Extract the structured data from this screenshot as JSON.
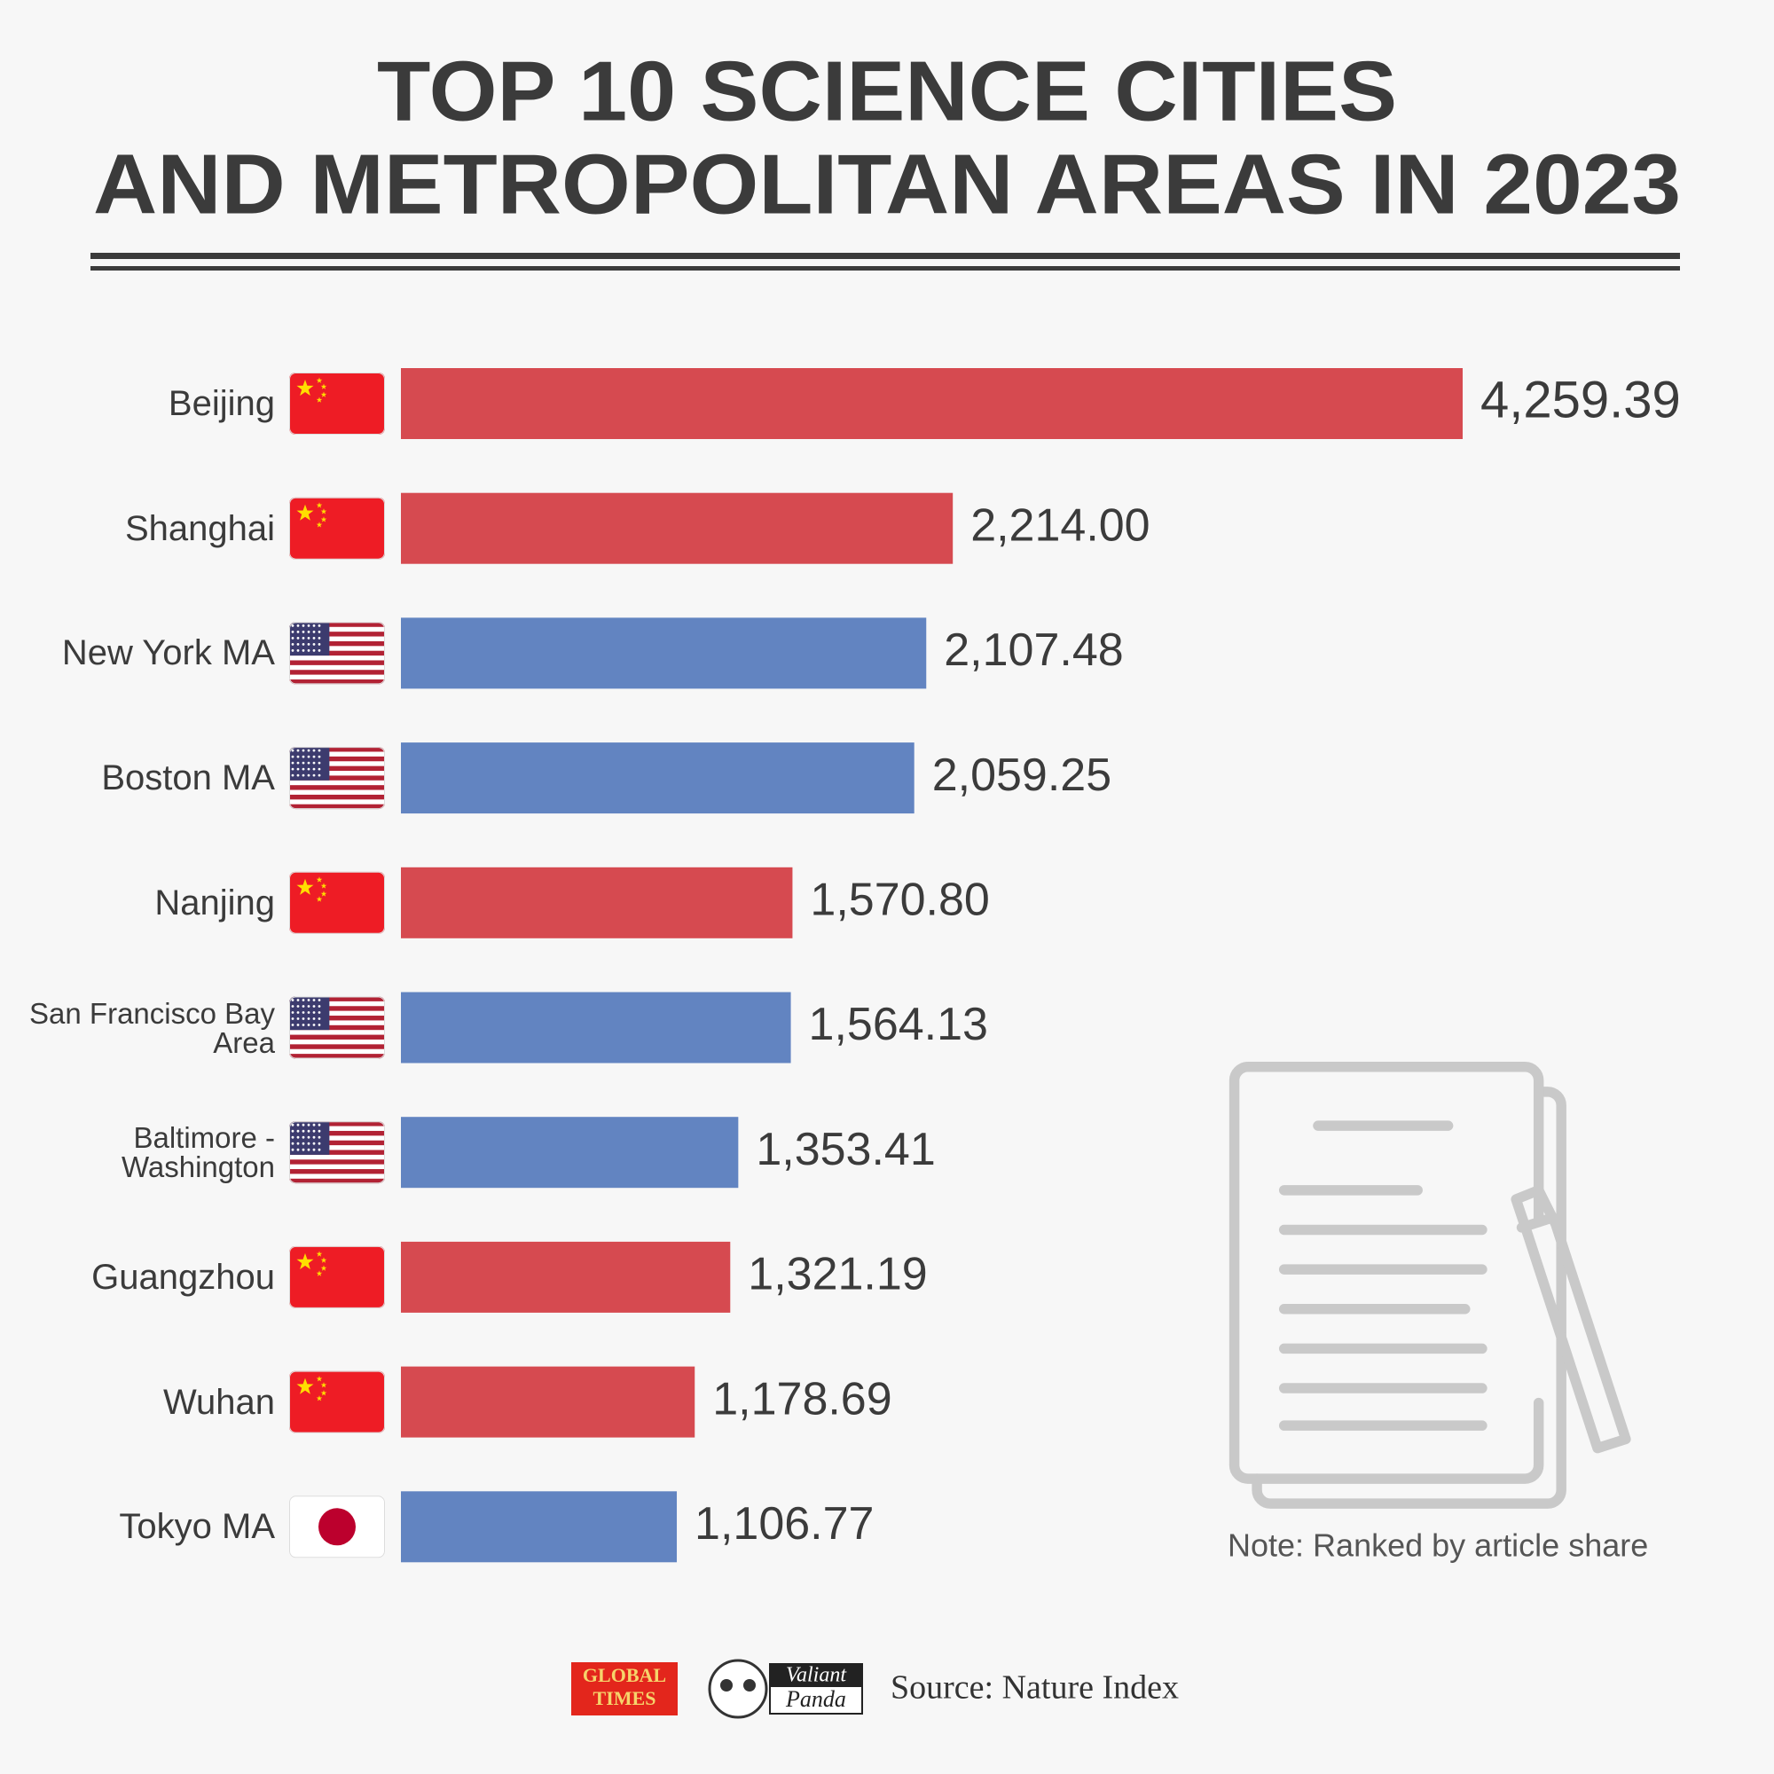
{
  "chart_data": {
    "type": "barh",
    "title": [
      "TOP 10 SCIENCE CITIES",
      "AND METROPOLITAN AREAS IN 2023"
    ],
    "categories": [
      "Beijing",
      "Shanghai",
      "New York MA",
      "Boston MA",
      "Nanjing",
      "San Francisco Bay Area",
      "Baltimore - Washington",
      "Guangzhou",
      "Wuhan",
      "Tokyo MA"
    ],
    "values": [
      4259.39,
      2214.0,
      2107.48,
      2059.25,
      1570.8,
      1564.13,
      1353.41,
      1321.19,
      1178.69,
      1106.77
    ],
    "value_labels": [
      "4,259.39",
      "2,214.00",
      "2,107.48",
      "2,059.25",
      "1,570.80",
      "1,564.13",
      "1,353.41",
      "1,321.19",
      "1,178.69",
      "1,106.77"
    ],
    "colors": [
      "#d64a50",
      "#d64a50",
      "#6284c1",
      "#6284c1",
      "#d64a50",
      "#6284c1",
      "#6284c1",
      "#d64a50",
      "#d64a50",
      "#6284c1"
    ],
    "note": "Note: Ranked by article share",
    "source": "Source: Nature Index",
    "logos": [
      [
        "GLOBAL",
        "TIMES"
      ],
      [
        "Valiant",
        "Panda"
      ]
    ]
  }
}
